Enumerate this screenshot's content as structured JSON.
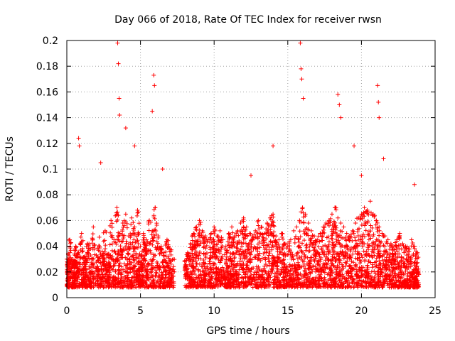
{
  "chart_data": {
    "type": "scatter",
    "title": "Day 066 of 2018, Rate Of TEC Index for receiver rwsn",
    "xlabel": "GPS time / hours",
    "ylabel": "ROTI / TECUs",
    "xlim": [
      0,
      25
    ],
    "ylim": [
      0,
      0.2
    ],
    "xticks": [
      "0",
      "5",
      "10",
      "15",
      "20",
      "25"
    ],
    "yticks": [
      "0",
      "0.02",
      "0.04",
      "0.06",
      "0.08",
      "0.1",
      "0.12",
      "0.14",
      "0.16",
      "0.18",
      "0.2"
    ],
    "grid": true,
    "marker": "+",
    "marker_color": "#ff0000",
    "series": [
      {
        "name": "ROTI",
        "envelope_note": "dense cloud between 0.01 and ~0.06 TECU/min from 0 to 24 h; data gap 7.4-8.0 h",
        "x": [
          0.0,
          0.2,
          0.4,
          0.6,
          0.8,
          1.0,
          1.2,
          1.4,
          1.6,
          1.8,
          2.0,
          2.2,
          2.4,
          2.6,
          2.8,
          3.0,
          3.2,
          3.4,
          3.6,
          3.8,
          4.0,
          4.2,
          4.4,
          4.6,
          4.8,
          5.0,
          5.2,
          5.4,
          5.6,
          5.8,
          6.0,
          6.2,
          6.4,
          6.6,
          6.8,
          7.0,
          7.2,
          8.0,
          8.2,
          8.4,
          8.6,
          8.8,
          9.0,
          9.2,
          9.4,
          9.6,
          9.8,
          10.0,
          10.2,
          10.4,
          10.6,
          10.8,
          11.0,
          11.2,
          11.4,
          11.6,
          11.8,
          12.0,
          12.2,
          12.4,
          12.6,
          12.8,
          13.0,
          13.2,
          13.4,
          13.6,
          13.8,
          14.0,
          14.2,
          14.4,
          14.6,
          14.8,
          15.0,
          15.2,
          15.4,
          15.6,
          15.8,
          16.0,
          16.2,
          16.4,
          16.6,
          16.8,
          17.0,
          17.2,
          17.4,
          17.6,
          17.8,
          18.0,
          18.2,
          18.4,
          18.6,
          18.8,
          19.0,
          19.2,
          19.4,
          19.6,
          19.8,
          20.0,
          20.2,
          20.4,
          20.6,
          20.8,
          21.0,
          21.2,
          21.4,
          21.6,
          21.8,
          22.0,
          22.2,
          22.4,
          22.6,
          22.8,
          23.0,
          23.2,
          23.4,
          23.6,
          23.8,
          0.1,
          0.5,
          1.1,
          1.5,
          2.1,
          2.9,
          3.1,
          3.3,
          3.5,
          3.55,
          3.7,
          4.1,
          4.3,
          4.5,
          4.7,
          4.9,
          5.5,
          5.7,
          6.1,
          6.5,
          6.9,
          7.3,
          8.5,
          8.9,
          9.3,
          9.7,
          10.1,
          10.5,
          11.1,
          11.9,
          12.3,
          12.7,
          13.1,
          13.7,
          14.1,
          14.5,
          15.1,
          15.5,
          15.7,
          15.9,
          16.1,
          16.3,
          16.9,
          17.3,
          17.7,
          18.1,
          18.3,
          18.5,
          18.7,
          19.1,
          19.7,
          20.1,
          20.5,
          20.9,
          21.1,
          21.3,
          21.7,
          22.1,
          22.5,
          23.1,
          23.5,
          23.9,
          3.45,
          3.5,
          3.55,
          3.58,
          4.0,
          5.8,
          5.9,
          5.95,
          15.85,
          15.9,
          15.95,
          16.05,
          18.4,
          18.5,
          18.6,
          21.1,
          21.15,
          21.2,
          0.8,
          0.85,
          2.3,
          4.6,
          6.5,
          12.5,
          14.0,
          19.5,
          20.0,
          21.5,
          23.6
        ],
        "y": [
          0.03,
          0.045,
          0.028,
          0.04,
          0.035,
          0.05,
          0.032,
          0.042,
          0.038,
          0.055,
          0.033,
          0.047,
          0.036,
          0.052,
          0.034,
          0.06,
          0.045,
          0.07,
          0.05,
          0.058,
          0.065,
          0.048,
          0.062,
          0.055,
          0.068,
          0.04,
          0.05,
          0.045,
          0.06,
          0.052,
          0.07,
          0.048,
          0.04,
          0.035,
          0.045,
          0.038,
          0.03,
          0.028,
          0.035,
          0.042,
          0.05,
          0.055,
          0.06,
          0.052,
          0.048,
          0.045,
          0.05,
          0.055,
          0.048,
          0.052,
          0.045,
          0.04,
          0.05,
          0.055,
          0.048,
          0.052,
          0.058,
          0.062,
          0.055,
          0.05,
          0.048,
          0.052,
          0.06,
          0.055,
          0.05,
          0.058,
          0.062,
          0.065,
          0.048,
          0.045,
          0.05,
          0.042,
          0.04,
          0.045,
          0.052,
          0.055,
          0.06,
          0.07,
          0.065,
          0.058,
          0.052,
          0.048,
          0.045,
          0.05,
          0.055,
          0.058,
          0.06,
          0.065,
          0.07,
          0.062,
          0.058,
          0.055,
          0.05,
          0.048,
          0.052,
          0.058,
          0.062,
          0.065,
          0.07,
          0.068,
          0.075,
          0.065,
          0.06,
          0.055,
          0.05,
          0.048,
          0.045,
          0.042,
          0.04,
          0.045,
          0.05,
          0.042,
          0.04,
          0.038,
          0.045,
          0.04,
          0.035,
          0.015,
          0.02,
          0.018,
          0.015,
          0.022,
          0.018,
          0.012,
          0.02,
          0.015,
          0.025,
          0.018,
          0.015,
          0.012,
          0.02,
          0.015,
          0.018,
          0.015,
          0.02,
          0.012,
          0.018,
          0.015,
          0.02,
          0.018,
          0.015,
          0.02,
          0.012,
          0.015,
          0.02,
          0.018,
          0.015,
          0.02,
          0.018,
          0.015,
          0.02,
          0.012,
          0.018,
          0.015,
          0.02,
          0.018,
          0.015,
          0.012,
          0.018,
          0.02,
          0.015,
          0.018,
          0.012,
          0.015,
          0.02,
          0.018,
          0.015,
          0.02,
          0.018,
          0.015,
          0.012,
          0.02,
          0.018,
          0.015,
          0.02,
          0.018,
          0.015,
          0.02,
          0.018,
          0.198,
          0.182,
          0.155,
          0.142,
          0.132,
          0.145,
          0.173,
          0.165,
          0.198,
          0.178,
          0.17,
          0.155,
          0.158,
          0.15,
          0.14,
          0.165,
          0.152,
          0.14,
          0.124,
          0.118,
          0.105,
          0.118,
          0.1,
          0.095,
          0.118,
          0.118,
          0.095,
          0.108,
          0.088
        ]
      }
    ]
  }
}
